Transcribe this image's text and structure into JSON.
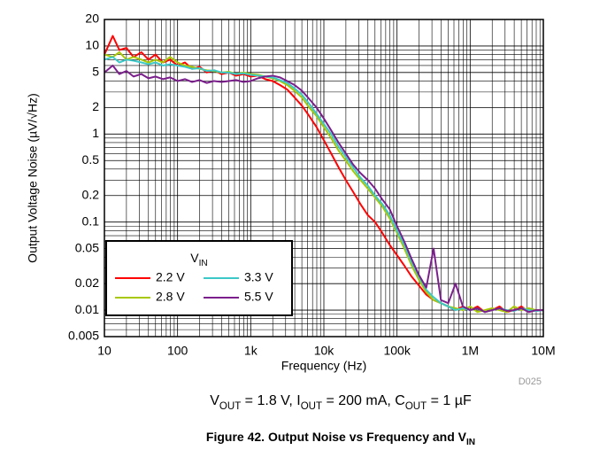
{
  "chart_data": {
    "type": "line",
    "x_label": "Frequency (Hz)",
    "y_label": "Output Voltage Noise (µV/√Hz)",
    "code": "D025",
    "condition": [
      "V",
      "OUT",
      " = 1.8 V, I",
      "OUT",
      " = 200 mA, C",
      "OUT",
      " = 1 µF"
    ],
    "caption": [
      "Figure 42. Output Noise vs Frequency and V",
      "IN"
    ],
    "legend_title": [
      "V",
      "IN"
    ],
    "legend_position": "lower left",
    "log_x": true,
    "log_y": true,
    "grid": true,
    "minor_grid": true,
    "xlim": [
      10,
      10000000
    ],
    "ylim": [
      0.005,
      20
    ],
    "xticks": [
      10,
      100,
      {
        "value": 1000,
        "label": "1k"
      },
      {
        "value": 10000,
        "label": "10k"
      },
      {
        "value": 100000,
        "label": "100k"
      },
      {
        "value": 1000000,
        "label": "1M"
      },
      {
        "value": 10000000,
        "label": "10M"
      }
    ],
    "yticks": [
      0.005,
      0.01,
      0.02,
      0.05,
      0.1,
      0.2,
      0.5,
      1,
      2,
      5,
      10,
      20
    ],
    "x": [
      10,
      13,
      16,
      20,
      25,
      32,
      40,
      50,
      63,
      79,
      100,
      126,
      158,
      200,
      251,
      316,
      398,
      501,
      631,
      794,
      1000,
      1259,
      1585,
      1995,
      2512,
      3162,
      3981,
      5012,
      6310,
      7943,
      10000,
      12589,
      15849,
      19953,
      25119,
      31623,
      39811,
      50119,
      63096,
      79433,
      100000,
      125893,
      158489,
      199526,
      251189,
      316228,
      398107,
      501187,
      630957,
      794328,
      1000000,
      1258925,
      1584893,
      1995262,
      2511886,
      3162278,
      3981072,
      5011872,
      6309573,
      7943282,
      10000000
    ],
    "series": [
      {
        "name": "2.2 V",
        "color": "#ff0000",
        "values": [
          8,
          13,
          9,
          9.5,
          7.5,
          8.5,
          7,
          8,
          6.5,
          7,
          6,
          6.5,
          5.5,
          5.8,
          5,
          5.3,
          4.8,
          5,
          4.6,
          4.8,
          4.5,
          4.6,
          4.2,
          4,
          3.6,
          3.2,
          2.6,
          2.1,
          1.6,
          1.2,
          0.85,
          0.6,
          0.42,
          0.3,
          0.22,
          0.16,
          0.12,
          0.1,
          0.075,
          0.055,
          0.042,
          0.032,
          0.024,
          0.019,
          0.015,
          0.013,
          0.012,
          0.011,
          0.01,
          0.011,
          0.01,
          0.011,
          0.0095,
          0.01,
          0.011,
          0.0095,
          0.01,
          0.011,
          0.0095,
          0.01,
          0.01
        ]
      },
      {
        "name": "2.8 V",
        "color": "#a8c800",
        "values": [
          8,
          7.5,
          8.5,
          7,
          7.5,
          7,
          6.5,
          7,
          6.5,
          7.5,
          6.5,
          6,
          5.8,
          5.5,
          5.3,
          5.2,
          5,
          5.1,
          4.8,
          5,
          4.8,
          4.7,
          4.5,
          4.3,
          4,
          3.6,
          3.1,
          2.6,
          2,
          1.6,
          1.2,
          0.9,
          0.65,
          0.5,
          0.38,
          0.3,
          0.24,
          0.19,
          0.15,
          0.11,
          0.075,
          0.05,
          0.032,
          0.022,
          0.016,
          0.013,
          0.012,
          0.011,
          0.0105,
          0.01,
          0.011,
          0.0095,
          0.01,
          0.0105,
          0.01,
          0.0095,
          0.011,
          0.01,
          0.0105,
          0.01,
          0.01
        ]
      },
      {
        "name": "3.3 V",
        "color": "#3cc8c8",
        "values": [
          7,
          7.5,
          6.5,
          7,
          6.8,
          6.5,
          6.2,
          6.5,
          6,
          6.2,
          6,
          5.8,
          5.5,
          5.6,
          5.2,
          5.3,
          5,
          5,
          4.8,
          4.9,
          4.7,
          4.6,
          4.5,
          4.4,
          4.1,
          3.8,
          3.3,
          2.8,
          2.2,
          1.7,
          1.3,
          1,
          0.72,
          0.55,
          0.42,
          0.32,
          0.26,
          0.2,
          0.16,
          0.12,
          0.08,
          0.055,
          0.035,
          0.024,
          0.017,
          0.014,
          0.012,
          0.011,
          0.01,
          0.0105,
          0.01,
          0.0105,
          0.0095,
          0.01,
          0.0105,
          0.01,
          0.0098,
          0.0105,
          0.01,
          0.0098,
          0.01
        ]
      },
      {
        "name": "5.5 V",
        "color": "#7b1f8c",
        "values": [
          5,
          6,
          4.8,
          5.2,
          4.5,
          4.8,
          4.3,
          4.5,
          4.2,
          4.4,
          4,
          4.2,
          3.9,
          4.1,
          3.8,
          4,
          3.9,
          4,
          4.1,
          3.9,
          4,
          4.3,
          4.5,
          4.6,
          4.4,
          4,
          3.6,
          3.1,
          2.5,
          2,
          1.5,
          1.1,
          0.8,
          0.6,
          0.45,
          0.36,
          0.3,
          0.24,
          0.18,
          0.14,
          0.09,
          0.06,
          0.038,
          0.025,
          0.018,
          0.05,
          0.013,
          0.012,
          0.02,
          0.011,
          0.01,
          0.0105,
          0.0095,
          0.01,
          0.0105,
          0.0098,
          0.01,
          0.0105,
          0.0095,
          0.01,
          0.01
        ]
      }
    ]
  }
}
